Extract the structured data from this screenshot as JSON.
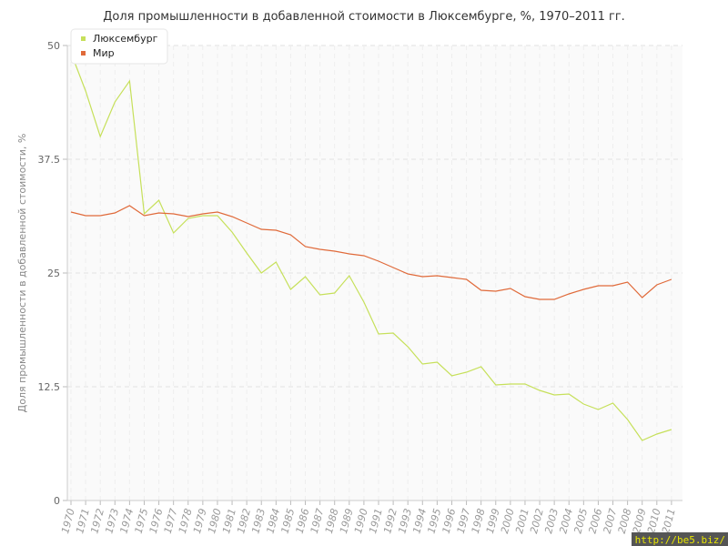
{
  "chart_data": {
    "type": "line",
    "title": "Доля промышленности в добавленной стоимости в Люксембурге, %, 1970–2011 гг.",
    "ylabel": "Доля промышленности в добавленной стоимости, %",
    "xlabel": "",
    "ylim": [
      0,
      50
    ],
    "yticks": [
      "0",
      "12.5",
      "25",
      "37.5",
      "50"
    ],
    "ytick_values": [
      0,
      12.5,
      25,
      37.5,
      50
    ],
    "grid": true,
    "legend_position": "top-left",
    "x": [
      "1970",
      "1971",
      "1972",
      "1973",
      "1974",
      "1975",
      "1976",
      "1977",
      "1978",
      "1979",
      "1980",
      "1981",
      "1982",
      "1983",
      "1984",
      "1985",
      "1986",
      "1987",
      "1988",
      "1989",
      "1990",
      "1991",
      "1992",
      "1993",
      "1994",
      "1995",
      "1996",
      "1997",
      "1998",
      "1999",
      "2000",
      "2001",
      "2002",
      "2003",
      "2004",
      "2005",
      "2006",
      "2007",
      "2008",
      "2009",
      "2010",
      "2011"
    ],
    "series": [
      {
        "name": "Люксембург",
        "color": "#c6e05a",
        "values": [
          49.2,
          45.0,
          40.0,
          43.8,
          46.1,
          31.5,
          33.0,
          29.4,
          31.0,
          31.3,
          31.3,
          29.5,
          27.2,
          25.0,
          26.2,
          23.2,
          24.6,
          22.6,
          22.8,
          24.7,
          21.8,
          18.3,
          18.4,
          16.9,
          15.0,
          15.2,
          13.7,
          14.1,
          14.7,
          12.7,
          12.8,
          12.8,
          12.1,
          11.6,
          11.7,
          10.6,
          10.0,
          10.7,
          8.9,
          6.6,
          7.3,
          7.8
        ]
      },
      {
        "name": "Мир",
        "color": "#e06a3a",
        "values": [
          31.7,
          31.3,
          31.3,
          31.6,
          32.4,
          31.3,
          31.6,
          31.5,
          31.2,
          31.5,
          31.7,
          31.2,
          30.5,
          29.8,
          29.7,
          29.2,
          27.9,
          27.6,
          27.4,
          27.1,
          26.9,
          26.3,
          25.6,
          24.9,
          24.6,
          24.7,
          24.5,
          24.3,
          23.1,
          23.0,
          23.3,
          22.4,
          22.1,
          22.1,
          22.7,
          23.2,
          23.6,
          23.6,
          24.0,
          22.3,
          23.7,
          24.3
        ]
      }
    ]
  },
  "watermark": "http://be5.biz/"
}
